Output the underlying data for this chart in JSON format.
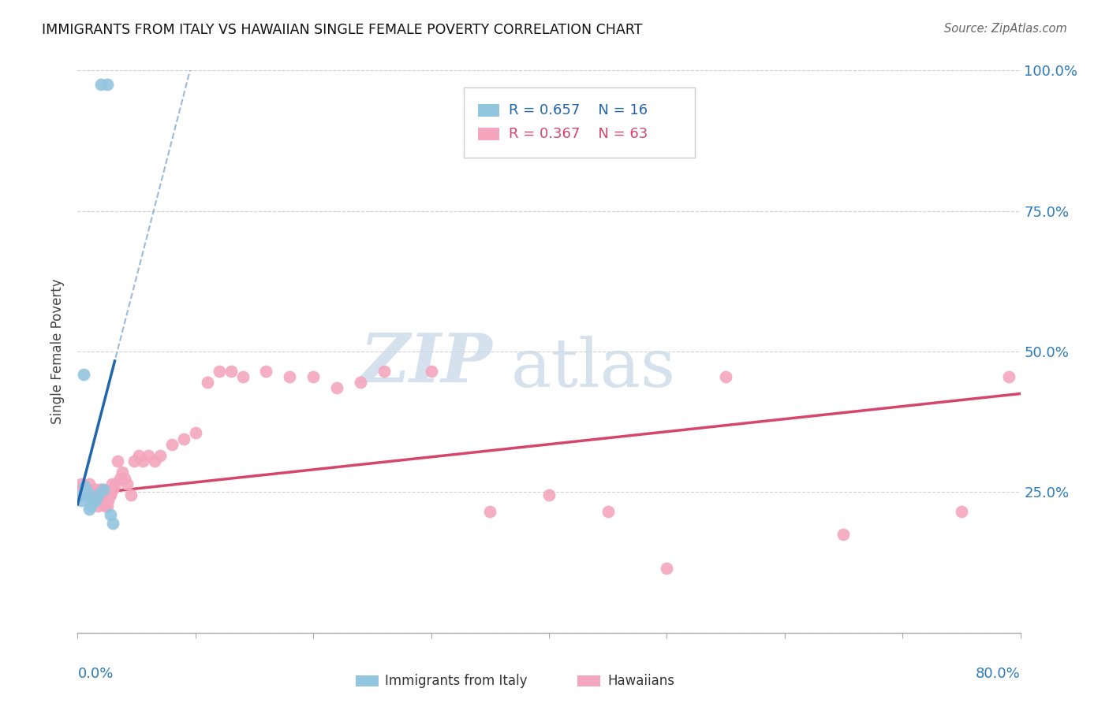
{
  "title": "IMMIGRANTS FROM ITALY VS HAWAIIAN SINGLE FEMALE POVERTY CORRELATION CHART",
  "source": "Source: ZipAtlas.com",
  "ylabel": "Single Female Poverty",
  "yticks": [
    0.0,
    0.25,
    0.5,
    0.75,
    1.0
  ],
  "ytick_labels": [
    "",
    "25.0%",
    "50.0%",
    "75.0%",
    "100.0%"
  ],
  "xmin": 0.0,
  "xmax": 0.8,
  "ymin": 0.0,
  "ymax": 1.0,
  "legend_R1": "R = 0.657",
  "legend_N1": "N = 16",
  "legend_R2": "R = 0.367",
  "legend_N2": "N = 63",
  "blue_scatter_color": "#92c5de",
  "blue_line_color": "#2166ac",
  "pink_scatter_color": "#f4a6be",
  "pink_line_color": "#d6456b",
  "watermark_zip": "ZIP",
  "watermark_atlas": "atlas",
  "blue_x": [
    0.02,
    0.025,
    0.005,
    0.007,
    0.003,
    0.004,
    0.006,
    0.008,
    0.01,
    0.011,
    0.013,
    0.015,
    0.017,
    0.022,
    0.028,
    0.03
  ],
  "blue_y": [
    0.975,
    0.975,
    0.46,
    0.245,
    0.235,
    0.245,
    0.26,
    0.25,
    0.22,
    0.225,
    0.235,
    0.235,
    0.245,
    0.255,
    0.21,
    0.195
  ],
  "pink_x": [
    0.003,
    0.004,
    0.005,
    0.006,
    0.007,
    0.008,
    0.009,
    0.01,
    0.011,
    0.012,
    0.013,
    0.014,
    0.015,
    0.016,
    0.017,
    0.018,
    0.019,
    0.02,
    0.021,
    0.022,
    0.023,
    0.024,
    0.025,
    0.026,
    0.027,
    0.028,
    0.029,
    0.03,
    0.032,
    0.034,
    0.036,
    0.038,
    0.04,
    0.042,
    0.045,
    0.048,
    0.052,
    0.055,
    0.06,
    0.065,
    0.07,
    0.08,
    0.09,
    0.1,
    0.11,
    0.12,
    0.13,
    0.14,
    0.16,
    0.18,
    0.2,
    0.22,
    0.24,
    0.26,
    0.3,
    0.35,
    0.4,
    0.45,
    0.5,
    0.55,
    0.65,
    0.75,
    0.79
  ],
  "pink_y": [
    0.265,
    0.255,
    0.255,
    0.245,
    0.245,
    0.255,
    0.245,
    0.265,
    0.245,
    0.245,
    0.255,
    0.235,
    0.255,
    0.235,
    0.225,
    0.245,
    0.255,
    0.255,
    0.235,
    0.255,
    0.225,
    0.245,
    0.225,
    0.235,
    0.245,
    0.245,
    0.265,
    0.255,
    0.265,
    0.305,
    0.275,
    0.285,
    0.275,
    0.265,
    0.245,
    0.305,
    0.315,
    0.305,
    0.315,
    0.305,
    0.315,
    0.335,
    0.345,
    0.355,
    0.445,
    0.465,
    0.465,
    0.455,
    0.465,
    0.455,
    0.455,
    0.435,
    0.445,
    0.465,
    0.465,
    0.215,
    0.245,
    0.215,
    0.115,
    0.455,
    0.175,
    0.215,
    0.455
  ],
  "pink_line_x0": 0.0,
  "pink_line_y0": 0.245,
  "pink_line_x1": 0.8,
  "pink_line_y1": 0.425
}
